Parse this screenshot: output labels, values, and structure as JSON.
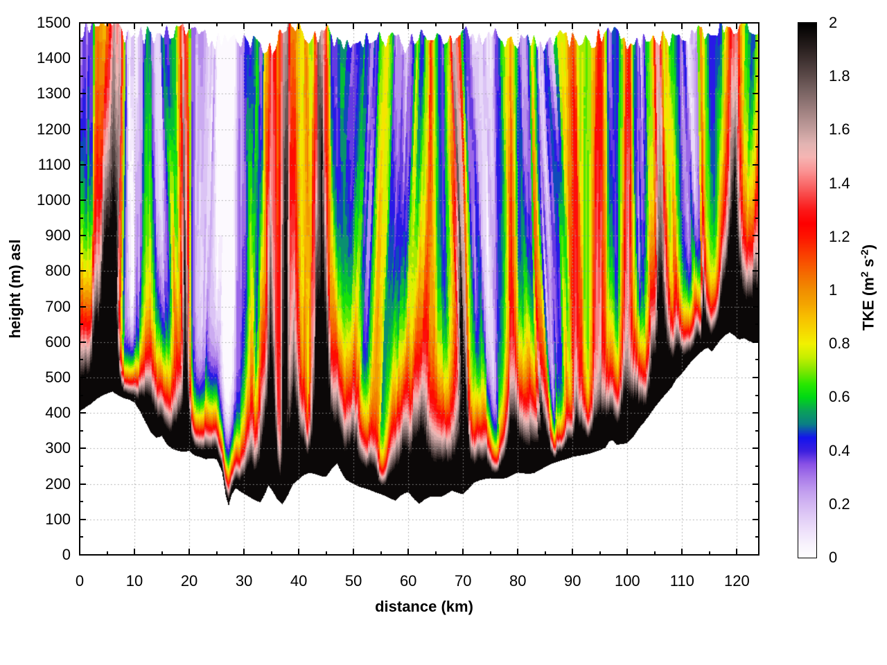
{
  "chart_data": {
    "type": "heatmap",
    "title": "",
    "xlabel": "distance (km)",
    "ylabel": "height (m) asl",
    "colorbar_label": {
      "t1": "TKE (m",
      "sup1": "2",
      "t2": " s",
      "sup2": "-2",
      "t3": ")"
    },
    "x_range": [
      0,
      124
    ],
    "y_range": [
      0,
      1500
    ],
    "c_range": [
      0,
      2
    ],
    "x_major_ticks": [
      0,
      10,
      20,
      30,
      40,
      50,
      60,
      70,
      80,
      90,
      100,
      110,
      120
    ],
    "x_minor_ticks": [
      5,
      15,
      25,
      35,
      45,
      55,
      65,
      75,
      85,
      95,
      105,
      115
    ],
    "y_major_ticks": [
      0,
      100,
      200,
      300,
      400,
      500,
      600,
      700,
      800,
      900,
      1000,
      1100,
      1200,
      1300,
      1400,
      1500
    ],
    "y_minor_ticks": [
      50,
      150,
      250,
      350,
      450,
      550,
      650,
      750,
      850,
      950,
      1050,
      1150,
      1250,
      1350,
      1450
    ],
    "x_tick_labels": [
      "0",
      "10",
      "20",
      "30",
      "40",
      "50",
      "60",
      "70",
      "80",
      "90",
      "100",
      "110",
      "120"
    ],
    "y_tick_labels": [
      "0",
      "100",
      "200",
      "300",
      "400",
      "500",
      "600",
      "700",
      "800",
      "900",
      "1000",
      "1100",
      "1200",
      "1300",
      "1400",
      "1500"
    ],
    "cb_major_ticks": [
      {
        "v": 0.0,
        "label": "0"
      },
      {
        "v": 0.2,
        "label": "0.2"
      },
      {
        "v": 0.4,
        "label": "0.4"
      },
      {
        "v": 0.6,
        "label": "0.6"
      },
      {
        "v": 0.8,
        "label": "0.8"
      },
      {
        "v": 1.0,
        "label": "1"
      },
      {
        "v": 1.2,
        "label": "1.2"
      },
      {
        "v": 1.4,
        "label": "1.4"
      },
      {
        "v": 1.6,
        "label": "1.6"
      },
      {
        "v": 1.8,
        "label": "1.8"
      },
      {
        "v": 2.0,
        "label": "2"
      }
    ],
    "cb_minor_ticks": [
      0.1,
      0.3,
      0.5,
      0.7,
      0.9,
      1.1,
      1.3,
      1.5,
      1.7,
      1.9
    ],
    "grid": {
      "color": "#9e9e9e",
      "style": "dotted"
    },
    "contour_step": 0.05,
    "palette": [
      [
        0.0,
        "#ffffff"
      ],
      [
        0.05,
        "#f8f3fd"
      ],
      [
        0.1,
        "#efe2fb"
      ],
      [
        0.15,
        "#e2cef7"
      ],
      [
        0.2,
        "#d4b8f3"
      ],
      [
        0.25,
        "#c29eef"
      ],
      [
        0.3,
        "#aa7cea"
      ],
      [
        0.35,
        "#8b53e6"
      ],
      [
        0.4,
        "#3c20df"
      ],
      [
        0.45,
        "#1414ee"
      ],
      [
        0.5,
        "#0a7f86"
      ],
      [
        0.55,
        "#0ba25a"
      ],
      [
        0.6,
        "#00d916"
      ],
      [
        0.65,
        "#2ae800"
      ],
      [
        0.7,
        "#7fe700"
      ],
      [
        0.75,
        "#c6ef00"
      ],
      [
        0.8,
        "#f2f200"
      ],
      [
        0.85,
        "#f6d800"
      ],
      [
        0.9,
        "#f8c000"
      ],
      [
        0.95,
        "#f4a500"
      ],
      [
        1.0,
        "#f18f00"
      ],
      [
        1.05,
        "#f47300"
      ],
      [
        1.1,
        "#f85500"
      ],
      [
        1.15,
        "#fb3600"
      ],
      [
        1.2,
        "#fe1600"
      ],
      [
        1.25,
        "#ff0000"
      ],
      [
        1.3,
        "#fc1818"
      ],
      [
        1.35,
        "#f94242"
      ],
      [
        1.4,
        "#fa6e6e"
      ],
      [
        1.45,
        "#fb9696"
      ],
      [
        1.5,
        "#f6b6b4"
      ],
      [
        1.55,
        "#e2b4b2"
      ],
      [
        1.6,
        "#c59f9e"
      ],
      [
        1.65,
        "#ab8b8a"
      ],
      [
        1.7,
        "#917675"
      ],
      [
        1.75,
        "#776261"
      ],
      [
        1.8,
        "#5e4c4b"
      ],
      [
        1.85,
        "#453736"
      ],
      [
        1.9,
        "#2d2322"
      ],
      [
        1.95,
        "#161110"
      ],
      [
        2.0,
        "#000000"
      ]
    ],
    "terrain_profile_m": [
      [
        0,
        405
      ],
      [
        1,
        415
      ],
      [
        2,
        425
      ],
      [
        3,
        438
      ],
      [
        4,
        448
      ],
      [
        5,
        455
      ],
      [
        6,
        460
      ],
      [
        7,
        450
      ],
      [
        8,
        442
      ],
      [
        9,
        438
      ],
      [
        10,
        430
      ],
      [
        11,
        405
      ],
      [
        12,
        375
      ],
      [
        13,
        345
      ],
      [
        14,
        330
      ],
      [
        15,
        335
      ],
      [
        16,
        310
      ],
      [
        17,
        298
      ],
      [
        18,
        293
      ],
      [
        19,
        290
      ],
      [
        20,
        293
      ],
      [
        21,
        280
      ],
      [
        22,
        276
      ],
      [
        23,
        270
      ],
      [
        24,
        272
      ],
      [
        25,
        270
      ],
      [
        26,
        235
      ],
      [
        26.7,
        165
      ],
      [
        27.2,
        138
      ],
      [
        27.7,
        168
      ],
      [
        28.5,
        188
      ],
      [
        29.2,
        180
      ],
      [
        30,
        172
      ],
      [
        31,
        163
      ],
      [
        32,
        154
      ],
      [
        33,
        148
      ],
      [
        33.7,
        168
      ],
      [
        34.5,
        196
      ],
      [
        35.3,
        178
      ],
      [
        36,
        158
      ],
      [
        37,
        142
      ],
      [
        38,
        168
      ],
      [
        39,
        200
      ],
      [
        40,
        213
      ],
      [
        41,
        226
      ],
      [
        42,
        231
      ],
      [
        43,
        228
      ],
      [
        44,
        222
      ],
      [
        45,
        220
      ],
      [
        46,
        242
      ],
      [
        47,
        258
      ],
      [
        47.8,
        232
      ],
      [
        48.6,
        212
      ],
      [
        50,
        200
      ],
      [
        51,
        192
      ],
      [
        52,
        188
      ],
      [
        53,
        183
      ],
      [
        54,
        176
      ],
      [
        55,
        171
      ],
      [
        56,
        165
      ],
      [
        57,
        157
      ],
      [
        57.7,
        153
      ],
      [
        58.5,
        166
      ],
      [
        59.3,
        173
      ],
      [
        60,
        177
      ],
      [
        61,
        158
      ],
      [
        62,
        144
      ],
      [
        63,
        156
      ],
      [
        64,
        164
      ],
      [
        65,
        165
      ],
      [
        66,
        164
      ],
      [
        67,
        172
      ],
      [
        68,
        181
      ],
      [
        69,
        175
      ],
      [
        70,
        171
      ],
      [
        71,
        186
      ],
      [
        72,
        203
      ],
      [
        73,
        210
      ],
      [
        74,
        214
      ],
      [
        75,
        216
      ],
      [
        76,
        214
      ],
      [
        77,
        214
      ],
      [
        78,
        217
      ],
      [
        79,
        225
      ],
      [
        80,
        232
      ],
      [
        81,
        230
      ],
      [
        82,
        228
      ],
      [
        83,
        231
      ],
      [
        84,
        239
      ],
      [
        85,
        248
      ],
      [
        86,
        256
      ],
      [
        87,
        261
      ],
      [
        88,
        266
      ],
      [
        89,
        271
      ],
      [
        90,
        276
      ],
      [
        91,
        279
      ],
      [
        92,
        282
      ],
      [
        93,
        285
      ],
      [
        94,
        290
      ],
      [
        95,
        295
      ],
      [
        96,
        302
      ],
      [
        96.7,
        320
      ],
      [
        97.3,
        323
      ],
      [
        98,
        311
      ],
      [
        99,
        312
      ],
      [
        100,
        315
      ],
      [
        101,
        331
      ],
      [
        102,
        354
      ],
      [
        103,
        373
      ],
      [
        104,
        393
      ],
      [
        105,
        416
      ],
      [
        106,
        435
      ],
      [
        107,
        453
      ],
      [
        108,
        471
      ],
      [
        109,
        496
      ],
      [
        110,
        512
      ],
      [
        111,
        532
      ],
      [
        112,
        551
      ],
      [
        113,
        566
      ],
      [
        114,
        579
      ],
      [
        114.7,
        584
      ],
      [
        115.4,
        573
      ],
      [
        116,
        585
      ],
      [
        117,
        606
      ],
      [
        118,
        621
      ],
      [
        118.7,
        627
      ],
      [
        119.4,
        620
      ],
      [
        120.4,
        607
      ],
      [
        121.3,
        611
      ],
      [
        122.2,
        603
      ],
      [
        123,
        598
      ],
      [
        124,
        601
      ]
    ],
    "top_edge_m": [
      [
        0,
        1480
      ],
      [
        4,
        1500
      ],
      [
        6,
        1500
      ],
      [
        8,
        1455
      ],
      [
        12,
        1465
      ],
      [
        16,
        1470
      ],
      [
        20,
        1480
      ],
      [
        24,
        1450
      ],
      [
        28,
        1445
      ],
      [
        32,
        1440
      ],
      [
        35,
        1425
      ],
      [
        37,
        1495
      ],
      [
        39,
        1500
      ],
      [
        42,
        1460
      ],
      [
        45,
        1475
      ],
      [
        48,
        1440
      ],
      [
        51,
        1435
      ],
      [
        54,
        1465
      ],
      [
        57,
        1450
      ],
      [
        60,
        1435
      ],
      [
        63,
        1480
      ],
      [
        66,
        1455
      ],
      [
        70,
        1470
      ],
      [
        73,
        1445
      ],
      [
        76,
        1460
      ],
      [
        79,
        1445
      ],
      [
        82,
        1455
      ],
      [
        85,
        1435
      ],
      [
        88,
        1465
      ],
      [
        91,
        1440
      ],
      [
        94,
        1455
      ],
      [
        97,
        1470
      ],
      [
        100,
        1445
      ],
      [
        103,
        1455
      ],
      [
        106,
        1460
      ],
      [
        109,
        1445
      ],
      [
        112,
        1465
      ],
      [
        115,
        1480
      ],
      [
        118,
        1495
      ],
      [
        120,
        1470
      ],
      [
        122,
        1490
      ],
      [
        124,
        1485
      ]
    ],
    "midlevel_tke_profile": [
      [
        0,
        0.35
      ],
      [
        1,
        0.3
      ],
      [
        2,
        0.5
      ],
      [
        2.8,
        1.2
      ],
      [
        3.5,
        1.1
      ],
      [
        4.3,
        1.65
      ],
      [
        5,
        1.9
      ],
      [
        5.5,
        2.0
      ],
      [
        6.5,
        2.0
      ],
      [
        7.2,
        1.35
      ],
      [
        7.8,
        0.6
      ],
      [
        8.5,
        0.1
      ],
      [
        9.5,
        0.05
      ],
      [
        10.5,
        0.1
      ],
      [
        11.2,
        0.45
      ],
      [
        12,
        0.8
      ],
      [
        12.8,
        0.75
      ],
      [
        13.5,
        0.4
      ],
      [
        14.5,
        0.28
      ],
      [
        15.5,
        0.25
      ],
      [
        16.3,
        0.55
      ],
      [
        17,
        0.75
      ],
      [
        17.8,
        0.9
      ],
      [
        18.4,
        1.4
      ],
      [
        19,
        2.0
      ],
      [
        19.6,
        1.5
      ],
      [
        20.3,
        0.6
      ],
      [
        21,
        0.35
      ],
      [
        22,
        0.25
      ],
      [
        23,
        0.15
      ],
      [
        24,
        0.12
      ],
      [
        25,
        0.1
      ],
      [
        26,
        0.08
      ],
      [
        27,
        0.1
      ],
      [
        28,
        0.12
      ],
      [
        29,
        0.3
      ],
      [
        30,
        0.45
      ],
      [
        30.8,
        0.7
      ],
      [
        31.6,
        0.75
      ],
      [
        32.4,
        0.55
      ],
      [
        33.2,
        0.8
      ],
      [
        34,
        1.3
      ],
      [
        34.8,
        1.75
      ],
      [
        35.5,
        1.6
      ],
      [
        36.2,
        1.2
      ],
      [
        37,
        1.9
      ],
      [
        37.6,
        2.0
      ],
      [
        38.2,
        1.3
      ],
      [
        39,
        1.45
      ],
      [
        39.6,
        1.2
      ],
      [
        40.3,
        0.9
      ],
      [
        41,
        1.05
      ],
      [
        41.8,
        0.8
      ],
      [
        42.5,
        1.3
      ],
      [
        43.2,
        1.95
      ],
      [
        44,
        2.0
      ],
      [
        44.8,
        1.6
      ],
      [
        45.5,
        0.9
      ],
      [
        46.2,
        0.55
      ],
      [
        47,
        0.5
      ],
      [
        47.8,
        0.65
      ],
      [
        48.5,
        0.45
      ],
      [
        49.2,
        0.42
      ],
      [
        50,
        0.48
      ],
      [
        50.8,
        0.6
      ],
      [
        51.5,
        0.5
      ],
      [
        52.2,
        0.42
      ],
      [
        53,
        0.48
      ],
      [
        53.8,
        0.65
      ],
      [
        54.5,
        0.8
      ],
      [
        55.2,
        0.75
      ],
      [
        56,
        0.45
      ],
      [
        56.8,
        0.3
      ],
      [
        57.5,
        0.28
      ],
      [
        58.2,
        0.35
      ],
      [
        59,
        0.5
      ],
      [
        59.8,
        0.7
      ],
      [
        60.5,
        0.85
      ],
      [
        61.2,
        0.7
      ],
      [
        62,
        0.9
      ],
      [
        62.8,
        1.1
      ],
      [
        63.5,
        1.25
      ],
      [
        64.2,
        0.9
      ],
      [
        65,
        0.6
      ],
      [
        65.8,
        0.4
      ],
      [
        66.5,
        0.3
      ],
      [
        67.2,
        0.45
      ],
      [
        68,
        0.8
      ],
      [
        68.6,
        1.3
      ],
      [
        69.3,
        2.0
      ],
      [
        70,
        1.6
      ],
      [
        70.6,
        0.9
      ],
      [
        71.3,
        0.5
      ],
      [
        72,
        0.35
      ],
      [
        73,
        0.3
      ],
      [
        74,
        0.2
      ],
      [
        74.8,
        0.15
      ],
      [
        75.5,
        0.25
      ],
      [
        76.2,
        0.55
      ],
      [
        77,
        0.75
      ],
      [
        77.8,
        1.0
      ],
      [
        78.5,
        1.25
      ],
      [
        79.2,
        1.1
      ],
      [
        80,
        0.6
      ],
      [
        80.8,
        0.4
      ],
      [
        81.5,
        0.38
      ],
      [
        82.3,
        0.5
      ],
      [
        83,
        1.15
      ],
      [
        83.8,
        0.8
      ],
      [
        84.5,
        0.3
      ],
      [
        85.2,
        0.2
      ],
      [
        86,
        0.35
      ],
      [
        86.8,
        0.45
      ],
      [
        87.5,
        0.4
      ],
      [
        88.2,
        0.7
      ],
      [
        89,
        0.8
      ],
      [
        89.8,
        1.1
      ],
      [
        90.5,
        1.3
      ],
      [
        91.2,
        1.0
      ],
      [
        92,
        0.75
      ],
      [
        92.8,
        0.7
      ],
      [
        93.5,
        1.0
      ],
      [
        94.2,
        1.25
      ],
      [
        95,
        1.3
      ],
      [
        95.8,
        0.9
      ],
      [
        96.5,
        0.5
      ],
      [
        97.2,
        0.4
      ],
      [
        98,
        0.45
      ],
      [
        98.8,
        0.9
      ],
      [
        99.5,
        1.25
      ],
      [
        100.2,
        1.3
      ],
      [
        101,
        0.8
      ],
      [
        101.8,
        0.3
      ],
      [
        102.5,
        0.2
      ],
      [
        103.2,
        0.15
      ],
      [
        104,
        0.75
      ],
      [
        104.8,
        1.0
      ],
      [
        105.5,
        1.7
      ],
      [
        106.2,
        1.75
      ],
      [
        107,
        1.1
      ],
      [
        107.8,
        0.9
      ],
      [
        108.5,
        1.0
      ],
      [
        109.2,
        0.75
      ],
      [
        110,
        0.55
      ],
      [
        110.8,
        0.35
      ],
      [
        111.5,
        0.25
      ],
      [
        112.2,
        0.3
      ],
      [
        113,
        0.28
      ],
      [
        113.6,
        1.2
      ],
      [
        114.2,
        0.6
      ],
      [
        115,
        0.45
      ],
      [
        115.8,
        0.55
      ],
      [
        116.5,
        0.7
      ],
      [
        117.2,
        1.1
      ],
      [
        118,
        1.35
      ],
      [
        118.8,
        1.7
      ],
      [
        119.5,
        1.9
      ],
      [
        120.2,
        1.3
      ],
      [
        121,
        0.85
      ],
      [
        121.8,
        0.7
      ],
      [
        122.5,
        0.9
      ],
      [
        123.2,
        1.25
      ],
      [
        124,
        1.1
      ]
    ],
    "surface_layer": {
      "peak_tke": 2.35,
      "decay_min_m": 55,
      "decay_max_m": 230
    },
    "noise_seeds": {
      "shear1": 3,
      "shear2": 4,
      "noise1": 5,
      "noise2": 6,
      "surface": 7,
      "topwiggle": 11
    }
  }
}
